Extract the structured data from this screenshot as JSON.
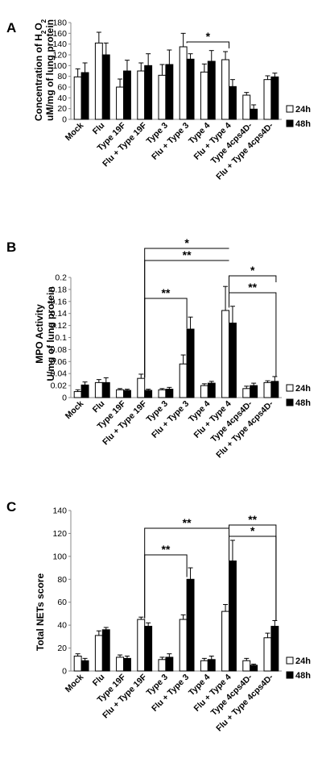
{
  "legend": {
    "series_24h": "24h",
    "series_48h": "48h"
  },
  "chart_data": [
    {
      "panel": "A",
      "type": "bar",
      "ylabel_line1": "Concentration of H",
      "ylabel_sub": "2",
      "ylabel_mid": "O",
      "ylabel_sub2": "2",
      "ylabel_line2": "uM/mg of lung protein",
      "ylim": [
        0,
        180
      ],
      "yticks": [
        "0",
        "20",
        "40",
        "60",
        "80",
        "100",
        "120",
        "140",
        "160",
        "180"
      ],
      "categories": [
        "Mock",
        "Flu",
        "Type 19F",
        "Flu + Type 19F",
        "Type 3",
        "Flu + Type 3",
        "Type 4",
        "Flu + Type 4",
        "Type 4cps4D-",
        "Flu + Type 4cps4D-"
      ],
      "series": [
        {
          "name": "24h",
          "values": [
            79,
            142,
            60,
            90,
            82,
            135,
            88,
            111,
            45,
            74
          ],
          "errors": [
            15,
            20,
            15,
            15,
            20,
            25,
            15,
            15,
            5,
            7
          ]
        },
        {
          "name": "48h",
          "values": [
            87,
            120,
            90,
            100,
            102,
            112,
            108,
            61,
            19,
            79
          ],
          "errors": [
            18,
            22,
            20,
            22,
            27,
            10,
            20,
            13,
            8,
            7
          ]
        }
      ],
      "significance": [
        {
          "label": "*"
        }
      ]
    },
    {
      "panel": "B",
      "type": "bar",
      "ylabel_line1": "MPO Activity",
      "ylabel_line2": "U/mg of lung protein",
      "ylim": [
        0,
        0.2
      ],
      "yticks": [
        "0",
        "0.02",
        "0.04",
        "0.06",
        "0.08",
        "0.1",
        "0.12",
        "0.14",
        "0.16",
        "0.18",
        "0.2"
      ],
      "categories": [
        "Mock",
        "Flu",
        "Type 19F",
        "Flu + Type 19F",
        "Type 3",
        "Flu + Type 3",
        "Type 4",
        "Flu + Type 4",
        "Type 4cps4D-",
        "Flu + Type 4cps4D-"
      ],
      "series": [
        {
          "name": "24h",
          "values": [
            0.01,
            0.025,
            0.013,
            0.032,
            0.013,
            0.056,
            0.02,
            0.145,
            0.015,
            0.025
          ],
          "errors": [
            0.003,
            0.005,
            0.002,
            0.007,
            0.002,
            0.015,
            0.003,
            0.04,
            0.004,
            0.003
          ]
        },
        {
          "name": "48h",
          "values": [
            0.021,
            0.025,
            0.012,
            0.012,
            0.014,
            0.114,
            0.024,
            0.124,
            0.02,
            0.027
          ],
          "errors": [
            0.005,
            0.008,
            0.002,
            0.002,
            0.003,
            0.02,
            0.003,
            0.028,
            0.004,
            0.008
          ]
        }
      ],
      "significance": [
        {
          "label": "*"
        },
        {
          "label": "**"
        },
        {
          "label": "*"
        },
        {
          "label": "**"
        },
        {
          "label": "**"
        }
      ]
    },
    {
      "panel": "C",
      "type": "bar",
      "ylabel_line1": "Total NETs score",
      "ylim": [
        0,
        140
      ],
      "yticks": [
        "0",
        "20",
        "40",
        "60",
        "80",
        "100",
        "120",
        "140"
      ],
      "categories": [
        "Mock",
        "Flu",
        "Type 19F",
        "Flu + Type 19F",
        "Type 3",
        "Flu + Type 3",
        "Type 4",
        "Flu + Type 4",
        "Type 4cps4D-",
        "Flu + Type 4cps4D-"
      ],
      "series": [
        {
          "name": "24h",
          "values": [
            13,
            31,
            12,
            45,
            10,
            45,
            9,
            52,
            9,
            29
          ],
          "errors": [
            2,
            4,
            2,
            2,
            2,
            4,
            2,
            6,
            2,
            4
          ]
        },
        {
          "name": "48h",
          "values": [
            9,
            36,
            11,
            39,
            12,
            80,
            10,
            96,
            5,
            39
          ],
          "errors": [
            2,
            2,
            2,
            3,
            3,
            10,
            3,
            18,
            1,
            5
          ]
        }
      ],
      "significance": [
        {
          "label": "**"
        },
        {
          "label": "**"
        },
        {
          "label": "**"
        },
        {
          "label": "*"
        }
      ]
    }
  ]
}
